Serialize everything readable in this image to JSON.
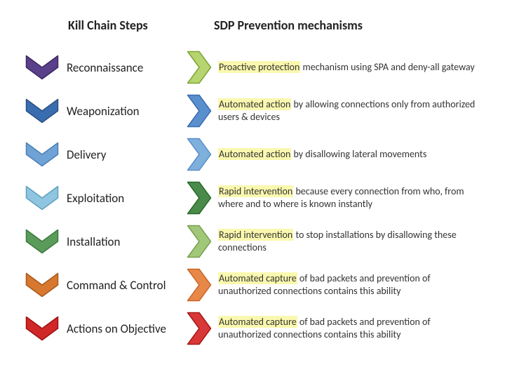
{
  "headers": {
    "left": "Kill Chain Steps",
    "right": "SDP Prevention mechanisms"
  },
  "rows": [
    {
      "step_label": "Reconnaissance",
      "highlight": "Proactive protection",
      "rest": " mechanism using SPA and deny-all gateway",
      "chevron_down_fill": "#5a3f8a",
      "chevron_down_stroke": "#3d2860",
      "chevron_right_fill": "#b6d46f",
      "chevron_right_stroke": "#7ea636"
    },
    {
      "step_label": "Weaponization",
      "highlight": "Automated action",
      "rest": " by allowing connections only from authorized users & devices",
      "chevron_down_fill": "#3a6db0",
      "chevron_down_stroke": "#2a4f82",
      "chevron_right_fill": "#5a8fce",
      "chevron_right_stroke": "#3a6db0"
    },
    {
      "step_label": "Delivery",
      "highlight": "Automated action",
      "rest": " by disallowing lateral movements",
      "chevron_down_fill": "#6fa3d6",
      "chevron_down_stroke": "#4a7fb6",
      "chevron_right_fill": "#7fb0dc",
      "chevron_right_stroke": "#5a8fce"
    },
    {
      "step_label": "Exploitation",
      "highlight": "Rapid intervention",
      "rest": " because every connection from who, from where and to where is known instantly",
      "chevron_down_fill": "#8fc5e0",
      "chevron_down_stroke": "#5fa0c0",
      "chevron_right_fill": "#4a8a4a",
      "chevron_right_stroke": "#2a6a2a"
    },
    {
      "step_label": "Installation",
      "highlight": "Rapid intervention",
      "rest": " to stop installations by disallowing these connections",
      "chevron_down_fill": "#5a9a5a",
      "chevron_down_stroke": "#3a7a3a",
      "chevron_right_fill": "#a0c878",
      "chevron_right_stroke": "#7aa050"
    },
    {
      "step_label": "Command & Control",
      "highlight": "Automated capture",
      "rest": " of bad packets and prevention of unauthorized connections contains this ability",
      "chevron_down_fill": "#d87830",
      "chevron_down_stroke": "#a85818",
      "chevron_right_fill": "#e88848",
      "chevron_right_stroke": "#c86828"
    },
    {
      "step_label": "Actions on Objective",
      "highlight": "Automated capture",
      "rest": " of bad packets and prevention of unauthorized connections contains this ability",
      "chevron_down_fill": "#d02828",
      "chevron_down_stroke": "#a01010",
      "chevron_right_fill": "#d83838",
      "chevron_right_stroke": "#a81818"
    }
  ],
  "highlight_bg": "#faf8ae",
  "background": "#ffffff",
  "header_fontsize": 18,
  "step_fontsize": 17,
  "desc_fontsize": 14
}
